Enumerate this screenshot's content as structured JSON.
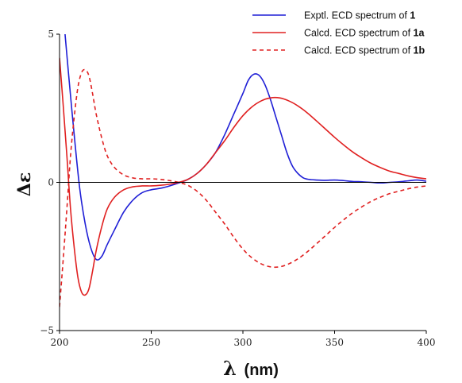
{
  "chart_data": {
    "type": "line",
    "xlabel_symbol": "λ",
    "xlabel_unit": "(nm)",
    "ylabel": "Δε",
    "xlim": [
      200,
      400
    ],
    "ylim": [
      -5,
      5
    ],
    "xticks": [
      200,
      250,
      300,
      350,
      400
    ],
    "yticks": [
      5,
      0,
      -5
    ],
    "ytick_labels": [
      "5",
      "0",
      "−5"
    ],
    "zero_line": true,
    "legend_position": "top-right",
    "series": [
      {
        "legend_prefix": "Exptl. ECD spectrum of ",
        "legend_bold": "1",
        "color": "#1f1fd6",
        "style": "solid",
        "x": [
          203,
          205,
          208,
          211,
          214,
          217,
          220,
          223,
          226,
          230,
          235,
          240,
          245,
          250,
          255,
          260,
          265,
          270,
          275,
          280,
          285,
          290,
          295,
          300,
          303,
          306,
          309,
          312,
          315,
          318,
          321,
          324,
          327,
          330,
          333,
          336,
          340,
          345,
          350,
          355,
          360,
          365,
          370,
          375,
          380,
          385,
          390,
          395,
          400
        ],
        "y": [
          5.0,
          3.6,
          1.6,
          -0.2,
          -1.4,
          -2.2,
          -2.6,
          -2.5,
          -2.1,
          -1.6,
          -1.0,
          -0.6,
          -0.35,
          -0.25,
          -0.2,
          -0.12,
          -0.02,
          0.1,
          0.3,
          0.6,
          1.0,
          1.6,
          2.3,
          3.0,
          3.45,
          3.65,
          3.6,
          3.3,
          2.8,
          2.2,
          1.6,
          1.0,
          0.55,
          0.3,
          0.15,
          0.1,
          0.08,
          0.07,
          0.08,
          0.06,
          0.03,
          0.02,
          0.0,
          -0.02,
          0.0,
          0.02,
          0.05,
          0.08,
          0.04
        ]
      },
      {
        "legend_prefix": "Calcd. ECD spectrum of ",
        "legend_bold": "1a",
        "color": "#e02020",
        "style": "solid",
        "x": [
          200,
          202,
          204,
          206,
          208,
          210,
          212,
          214,
          216,
          218,
          220,
          223,
          226,
          230,
          235,
          240,
          245,
          250,
          255,
          260,
          265,
          270,
          275,
          280,
          285,
          290,
          295,
          300,
          305,
          310,
          315,
          320,
          325,
          330,
          335,
          340,
          345,
          350,
          355,
          360,
          365,
          370,
          375,
          380,
          385,
          390,
          395,
          400
        ],
        "y": [
          4.2,
          2.6,
          0.9,
          -0.9,
          -2.2,
          -3.2,
          -3.7,
          -3.8,
          -3.6,
          -3.0,
          -2.3,
          -1.5,
          -0.9,
          -0.5,
          -0.25,
          -0.15,
          -0.12,
          -0.12,
          -0.1,
          -0.06,
          0.0,
          0.1,
          0.3,
          0.6,
          1.0,
          1.4,
          1.85,
          2.25,
          2.55,
          2.75,
          2.85,
          2.85,
          2.75,
          2.58,
          2.35,
          2.08,
          1.8,
          1.52,
          1.26,
          1.02,
          0.82,
          0.64,
          0.5,
          0.38,
          0.3,
          0.22,
          0.16,
          0.12
        ]
      },
      {
        "legend_prefix": "Calcd. ECD spectrum of ",
        "legend_bold": "1b",
        "color": "#e02020",
        "style": "dashed",
        "x": [
          200,
          202,
          204,
          206,
          208,
          210,
          212,
          214,
          216,
          218,
          220,
          223,
          226,
          230,
          235,
          240,
          245,
          250,
          255,
          260,
          265,
          270,
          275,
          280,
          285,
          290,
          295,
          300,
          305,
          310,
          315,
          320,
          325,
          330,
          335,
          340,
          345,
          350,
          355,
          360,
          365,
          370,
          375,
          380,
          385,
          390,
          395,
          400
        ],
        "y": [
          -4.2,
          -2.6,
          -0.9,
          0.9,
          2.2,
          3.2,
          3.7,
          3.8,
          3.6,
          3.0,
          2.3,
          1.5,
          0.9,
          0.5,
          0.25,
          0.15,
          0.12,
          0.12,
          0.1,
          0.06,
          0.0,
          -0.1,
          -0.3,
          -0.6,
          -1.0,
          -1.4,
          -1.85,
          -2.25,
          -2.55,
          -2.75,
          -2.85,
          -2.85,
          -2.75,
          -2.58,
          -2.35,
          -2.08,
          -1.8,
          -1.52,
          -1.26,
          -1.02,
          -0.82,
          -0.64,
          -0.5,
          -0.38,
          -0.3,
          -0.22,
          -0.16,
          -0.12
        ]
      }
    ]
  }
}
